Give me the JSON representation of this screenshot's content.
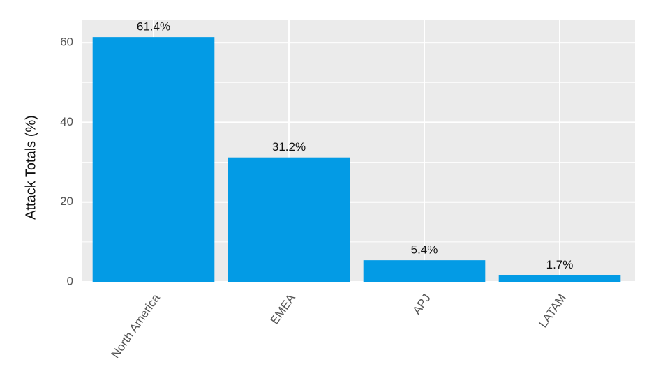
{
  "chart_data": {
    "type": "bar",
    "y_label": "Attack Totals (%)",
    "categories": [
      "North America",
      "EMEA",
      "APJ",
      "LATAM"
    ],
    "values": [
      61.4,
      31.2,
      5.4,
      1.7
    ],
    "value_labels": [
      "61.4%",
      "31.2%",
      "5.4%",
      "1.7%"
    ],
    "color": "#039be5",
    "ylim": [
      0,
      65.8
    ],
    "yticks": [
      0,
      20,
      40,
      60
    ],
    "y_minor_ticks": [
      10,
      30,
      50
    ],
    "grid": true
  }
}
